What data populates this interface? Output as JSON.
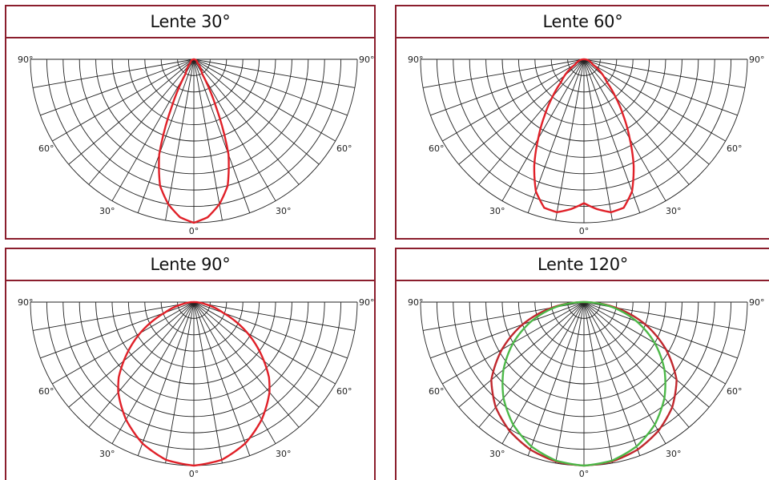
{
  "colors": {
    "frame": "#8b1e2d",
    "grid": "#222222",
    "red_curve": "#e02028",
    "dark_red_curve": "#c0272d",
    "green_curve": "#4cb848"
  },
  "chart_data": [
    {
      "type": "polar",
      "title": "Lente 30°",
      "angle_labels": {
        "left_90": "90°",
        "right_90": "90°",
        "left_60": "60°",
        "right_60": "60°",
        "left_30": "30°",
        "right_30": "30°",
        "bottom_0": "0°"
      },
      "series": [
        {
          "color": "#e02028",
          "beam_angle_deg": 30,
          "curve": [
            [
              0,
              1.0
            ],
            [
              5,
              0.97
            ],
            [
              10,
              0.9
            ],
            [
              15,
              0.8
            ],
            [
              20,
              0.62
            ],
            [
              25,
              0.32
            ],
            [
              30,
              0.1
            ],
            [
              45,
              0.03
            ],
            [
              90,
              0
            ]
          ]
        }
      ]
    },
    {
      "type": "polar",
      "title": "Lente 60°",
      "angle_labels": {
        "left_90": "90°",
        "right_90": "90°",
        "left_60": "60°",
        "right_60": "60°",
        "left_30": "30°",
        "right_30": "30°",
        "bottom_0": "0°"
      },
      "series": [
        {
          "color": "#e02028",
          "beam_angle_deg": 60,
          "curve": [
            [
              0,
              0.88
            ],
            [
              5,
              0.92
            ],
            [
              10,
              0.95
            ],
            [
              15,
              0.94
            ],
            [
              20,
              0.86
            ],
            [
              25,
              0.72
            ],
            [
              30,
              0.56
            ],
            [
              35,
              0.42
            ],
            [
              40,
              0.3
            ],
            [
              45,
              0.2
            ],
            [
              60,
              0.06
            ],
            [
              90,
              0
            ]
          ]
        }
      ]
    },
    {
      "type": "polar",
      "title": "Lente 90°",
      "angle_labels": {
        "left_90": "90°",
        "right_90": "90°",
        "left_60": "60°",
        "right_60": "60°",
        "left_30": "30°",
        "right_30": "30°",
        "bottom_0": "0°"
      },
      "series": [
        {
          "color": "#e02028",
          "beam_angle_deg": 90,
          "curve": [
            [
              0,
              1.0
            ],
            [
              10,
              0.98
            ],
            [
              20,
              0.92
            ],
            [
              30,
              0.83
            ],
            [
              40,
              0.72
            ],
            [
              45,
              0.65
            ],
            [
              50,
              0.56
            ],
            [
              60,
              0.38
            ],
            [
              70,
              0.19
            ],
            [
              80,
              0.07
            ],
            [
              90,
              0
            ]
          ]
        }
      ]
    },
    {
      "type": "polar",
      "title": "Lente 120°",
      "angle_labels": {
        "left_90": "90°",
        "right_90": "90°",
        "left_60": "60°",
        "right_60": "60°",
        "left_30": "30°",
        "right_30": "30°",
        "bottom_0": "0°"
      },
      "series": [
        {
          "color": "#c0272d",
          "beam_angle_deg": 120,
          "curve": [
            [
              0,
              1.0
            ],
            [
              10,
              0.99
            ],
            [
              20,
              0.96
            ],
            [
              30,
              0.91
            ],
            [
              40,
              0.84
            ],
            [
              50,
              0.74
            ],
            [
              60,
              0.58
            ],
            [
              70,
              0.4
            ],
            [
              80,
              0.2
            ],
            [
              90,
              0
            ]
          ]
        },
        {
          "color": "#4cb848",
          "beam_angle_deg": 120,
          "curve": [
            [
              0,
              1.0
            ],
            [
              10,
              0.985
            ],
            [
              20,
              0.94
            ],
            [
              30,
              0.866
            ],
            [
              40,
              0.766
            ],
            [
              50,
              0.643
            ],
            [
              60,
              0.5
            ],
            [
              70,
              0.342
            ],
            [
              80,
              0.174
            ],
            [
              90,
              0
            ]
          ]
        }
      ]
    }
  ]
}
